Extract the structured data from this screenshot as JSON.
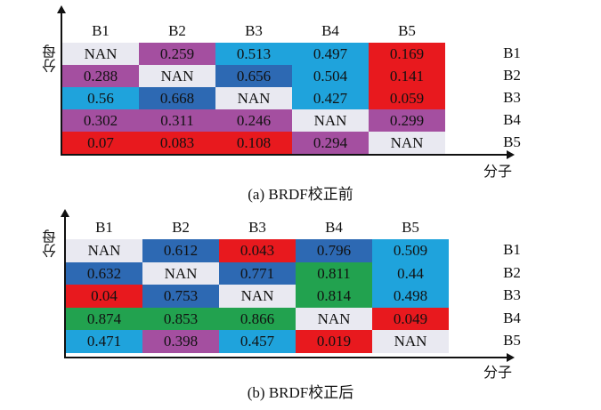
{
  "palette": {
    "nan": "#e9e9f1",
    "lt02": "#e8191e",
    "lt04": "#a44fa0",
    "lt06": "#1fa3dc",
    "lt08": "#2d69b3",
    "ge08": "#22a24f"
  },
  "chart_data": [
    {
      "type": "heatmap",
      "title": "(a) BRDF校正前",
      "xlabel": "分子",
      "ylabel": "分母",
      "col_labels": [
        "B1",
        "B2",
        "B3",
        "B4",
        "B5"
      ],
      "row_labels": [
        "B1",
        "B2",
        "B3",
        "B4",
        "B5"
      ],
      "values": [
        [
          "NAN",
          "0.259",
          "0.513",
          "0.497",
          "0.169"
        ],
        [
          "0.288",
          "NAN",
          "0.656",
          "0.504",
          "0.141"
        ],
        [
          "0.56",
          "0.668",
          "NAN",
          "0.427",
          "0.059"
        ],
        [
          "0.302",
          "0.311",
          "0.246",
          "NAN",
          "0.299"
        ],
        [
          "0.07",
          "0.083",
          "0.108",
          "0.294",
          "NAN"
        ]
      ]
    },
    {
      "type": "heatmap",
      "title": "(b) BRDF校正后",
      "xlabel": "分子",
      "ylabel": "分母",
      "col_labels": [
        "B1",
        "B2",
        "B3",
        "B4",
        "B5"
      ],
      "row_labels": [
        "B1",
        "B2",
        "B3",
        "B4",
        "B5"
      ],
      "values": [
        [
          "NAN",
          "0.612",
          "0.043",
          "0.796",
          "0.509"
        ],
        [
          "0.632",
          "NAN",
          "0.771",
          "0.811",
          "0.44"
        ],
        [
          "0.04",
          "0.753",
          "NAN",
          "0.814",
          "0.498"
        ],
        [
          "0.874",
          "0.853",
          "0.866",
          "NAN",
          "0.049"
        ],
        [
          "0.471",
          "0.398",
          "0.457",
          "0.019",
          "NAN"
        ]
      ]
    }
  ]
}
